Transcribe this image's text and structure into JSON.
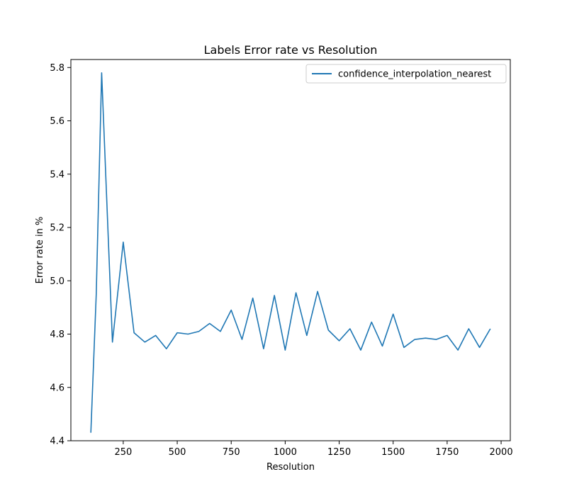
{
  "chart_data": {
    "type": "line",
    "title": "Labels Error rate vs Resolution",
    "xlabel": "Resolution",
    "ylabel": "Error rate in %",
    "xlim": [
      7.5,
      2042.5
    ],
    "ylim": [
      4.4,
      5.83
    ],
    "x_ticks": [
      {
        "value": 250,
        "label": "250"
      },
      {
        "value": 500,
        "label": "500"
      },
      {
        "value": 750,
        "label": "750"
      },
      {
        "value": 1000,
        "label": "1000"
      },
      {
        "value": 1250,
        "label": "1250"
      },
      {
        "value": 1500,
        "label": "1500"
      },
      {
        "value": 1750,
        "label": "1750"
      },
      {
        "value": 2000,
        "label": "2000"
      }
    ],
    "y_ticks": [
      {
        "value": 4.4,
        "label": "4.4"
      },
      {
        "value": 4.6,
        "label": "4.6"
      },
      {
        "value": 4.8,
        "label": "4.8"
      },
      {
        "value": 5.0,
        "label": "5.0"
      },
      {
        "value": 5.2,
        "label": "5.2"
      },
      {
        "value": 5.4,
        "label": "5.4"
      },
      {
        "value": 5.6,
        "label": "5.6"
      },
      {
        "value": 5.8,
        "label": "5.8"
      }
    ],
    "grid": false,
    "legend_position": "top-right",
    "series": [
      {
        "name": "confidence_interpolation_nearest",
        "color": "#1f77b4",
        "x": [
          100,
          125,
          150,
          200,
          250,
          300,
          350,
          400,
          450,
          500,
          550,
          600,
          650,
          700,
          750,
          800,
          850,
          900,
          950,
          1000,
          1050,
          1100,
          1150,
          1200,
          1250,
          1300,
          1350,
          1400,
          1450,
          1500,
          1550,
          1600,
          1650,
          1700,
          1750,
          1800,
          1850,
          1900,
          1950
        ],
        "y": [
          4.43,
          4.95,
          5.78,
          4.77,
          5.145,
          4.805,
          4.77,
          4.795,
          4.745,
          4.805,
          4.8,
          4.81,
          4.84,
          4.81,
          4.89,
          4.78,
          4.935,
          4.745,
          4.945,
          4.74,
          4.955,
          4.795,
          4.96,
          4.815,
          4.775,
          4.82,
          4.74,
          4.845,
          4.755,
          4.875,
          4.75,
          4.78,
          4.785,
          4.78,
          4.795,
          4.74,
          4.82,
          4.75,
          4.82
        ]
      }
    ]
  }
}
